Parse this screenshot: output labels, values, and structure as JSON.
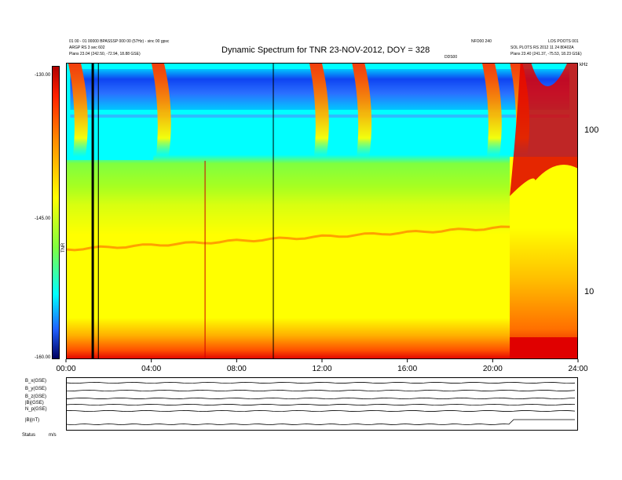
{
  "header": {
    "title": "Dynamic Spectrum for TNR 23-NOV-2012, DOY = 328",
    "left_info_1": "01 00 - 01 00000 BPASSSP 000 00 (57Hz) - sinc 00 gpsc",
    "left_info_2": "ARGP RS 3 sec 602",
    "left_info_3": "Plans 23.04 (242.50, -72.94, 18.88 GSE)",
    "right_info_1": "NFO00 240",
    "right_info_2": "LOS POOTS 001",
    "right_info_3": "SOL PLOTS RS 2012 11 24 80402A",
    "right_info_4": "Plans 23.40 (241.37, -75.53, 18.23 GSE)",
    "mid_marker": "DDS00"
  },
  "colorbar": {
    "label": "TNR",
    "tick_labels": [
      "-130.00",
      "-145.00",
      "-160.00"
    ]
  },
  "right_axis": {
    "unit": "kHz",
    "tick_labels": [
      "100",
      "10"
    ]
  },
  "lower_panel": {
    "row_labels": [
      "B_x(GSE)",
      "B_y(GSE)",
      "B_z(GSE)",
      "|B|(GSE)",
      "N_p(GSE)",
      "|B|(nT)"
    ],
    "footer_label": "Status",
    "footer_value": "m/s"
  },
  "chart_data": {
    "type": "heatmap",
    "title": "Dynamic Spectrum for TNR 23-NOV-2012, DOY = 328",
    "x_tick_labels": [
      "00:00",
      "04:00",
      "08:00",
      "12:00",
      "16:00",
      "20:00",
      "24:00"
    ],
    "x_range_hours": [
      0,
      24
    ],
    "y_scale": "log",
    "y_range_khz": [
      4,
      220
    ],
    "y_tick_labels": [
      "100",
      "10"
    ],
    "color_range": [
      -160,
      -130
    ],
    "colors": {
      "red": "#e00000",
      "orange": "#ff8a00",
      "yellow": "#ffff00",
      "green": "#7fff3f",
      "cyan": "#00ffff",
      "blue": "#1030f0",
      "dark_blue": "#000070"
    },
    "vertical_lines_hours": [
      1.2,
      6.5,
      9.7
    ],
    "burst_times_hours": [
      0.4,
      4.3,
      11.7,
      13.7,
      19.8,
      21.1
    ]
  }
}
